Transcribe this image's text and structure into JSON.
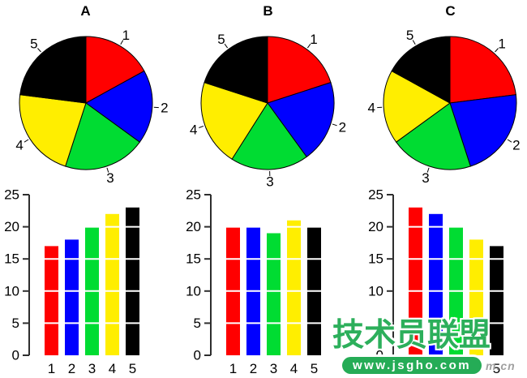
{
  "page": {
    "background": "#ffffff"
  },
  "palette": {
    "series_colors": [
      "#FF0000",
      "#0000FF",
      "#00DC32",
      "#FFEE00",
      "#000000"
    ],
    "axis_color": "#2e2e2e",
    "label_color": "#000000",
    "grid_color": "#ffffff"
  },
  "chart_data": {
    "layout": "3 columns, pie chart above bar chart in each column",
    "columns": [
      {
        "title": "A",
        "pie": {
          "type": "pie",
          "labels": [
            "1",
            "2",
            "3",
            "4",
            "5"
          ],
          "values": [
            17,
            18,
            20,
            22,
            23
          ],
          "colors": [
            "#FF0000",
            "#0000FF",
            "#00DC32",
            "#FFEE00",
            "#000000"
          ],
          "start": "12-oclock",
          "direction": "clockwise"
        },
        "bar": {
          "type": "bar",
          "categories": [
            "1",
            "2",
            "3",
            "4",
            "5"
          ],
          "values": [
            17,
            18,
            20,
            22,
            23
          ],
          "colors": [
            "#FF0000",
            "#0000FF",
            "#00DC32",
            "#FFEE00",
            "#000000"
          ],
          "ylim": [
            0,
            25
          ],
          "yticks": [
            0,
            5,
            10,
            15,
            20,
            25
          ],
          "grid": "white horizontal lines over bars at 5,10,15,20",
          "legend": "none"
        }
      },
      {
        "title": "B",
        "pie": {
          "type": "pie",
          "labels": [
            "1",
            "2",
            "3",
            "4",
            "5"
          ],
          "values": [
            20,
            20,
            19,
            21,
            20
          ],
          "colors": [
            "#FF0000",
            "#0000FF",
            "#00DC32",
            "#FFEE00",
            "#000000"
          ],
          "start": "12-oclock",
          "direction": "clockwise"
        },
        "bar": {
          "type": "bar",
          "categories": [
            "1",
            "2",
            "3",
            "4",
            "5"
          ],
          "values": [
            20,
            20,
            19,
            21,
            20
          ],
          "colors": [
            "#FF0000",
            "#0000FF",
            "#00DC32",
            "#FFEE00",
            "#000000"
          ],
          "ylim": [
            0,
            25
          ],
          "yticks": [
            0,
            5,
            10,
            15,
            20,
            25
          ],
          "grid": "white horizontal lines over bars at 5,10,15,20",
          "legend": "none"
        }
      },
      {
        "title": "C",
        "pie": {
          "type": "pie",
          "labels": [
            "1",
            "2",
            "3",
            "4",
            "5"
          ],
          "values": [
            23,
            22,
            20,
            18,
            17
          ],
          "colors": [
            "#FF0000",
            "#0000FF",
            "#00DC32",
            "#FFEE00",
            "#000000"
          ],
          "start": "12-oclock",
          "direction": "clockwise"
        },
        "bar": {
          "type": "bar",
          "categories": [
            "1",
            "2",
            "3",
            "4",
            "5"
          ],
          "values": [
            23,
            22,
            20,
            18,
            17
          ],
          "colors": [
            "#FF0000",
            "#0000FF",
            "#00DC32",
            "#FFEE00",
            "#000000"
          ],
          "ylim": [
            0,
            25
          ],
          "yticks": [
            0,
            5,
            10,
            15,
            20,
            25
          ],
          "grid": "white horizontal lines over bars at 5,10,15,20",
          "legend": "none"
        }
      }
    ]
  },
  "watermark": {
    "brand": "技术员联盟",
    "url": "www.jsgho.com",
    "suffix": "m.cn",
    "brand_color": "#2CAF5B",
    "box_color": "#25AC56",
    "suffix_color": "#A0A0A0"
  }
}
